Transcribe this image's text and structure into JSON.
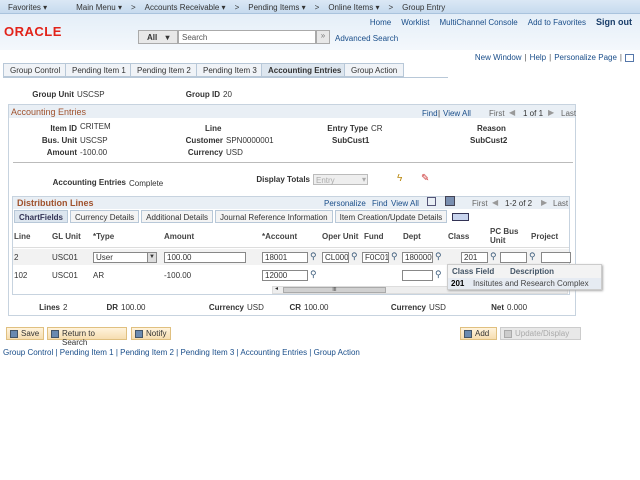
{
  "topnav": {
    "favorites": "Favorites ▾",
    "main_menu": "Main Menu ▾",
    "accounts_receivable": "Accounts Receivable ▾",
    "pending_items": "Pending Items ▾",
    "online_items": "Online Items ▾",
    "group_entry": "Group Entry",
    "sep": ">"
  },
  "header": {
    "logo": "ORACLE",
    "links": [
      "Home",
      "Worklist",
      "MultiChannel Console",
      "Add to Favorites"
    ],
    "sign_out": "Sign out",
    "search_scope": "All",
    "search_placeholder": "Search",
    "advanced_search": "Advanced Search"
  },
  "page_links": {
    "new_window": "New Window",
    "help": "Help",
    "personalize": "Personalize Page"
  },
  "tabs": [
    "Group Control",
    "Pending Item 1",
    "Pending Item 2",
    "Pending Item 3",
    "Accounting Entries",
    "Group Action"
  ],
  "active_tab": 4,
  "group": {
    "unit_label": "Group Unit",
    "unit": "USCSP",
    "id_label": "Group ID",
    "id": "20"
  },
  "accounting": {
    "title": "Accounting Entries",
    "find": "Find",
    "view_all": "View All",
    "first": "First",
    "count": "1 of 1",
    "last": "Last",
    "item_id_label": "Item ID",
    "item_id": "CRITEM",
    "line_label": "Line",
    "entry_type_label": "Entry Type",
    "entry_type": "CR",
    "reason_label": "Reason",
    "bus_unit_label": "Bus. Unit",
    "bus_unit": "USCSP",
    "customer_label": "Customer",
    "customer": "SPN0000001",
    "subcust1_label": "SubCust1",
    "subcust2_label": "SubCust2",
    "amount_label": "Amount",
    "amount": "-100.00",
    "currency_label": "Currency",
    "currency": "USD",
    "status_label": "Accounting Entries",
    "status": "Complete",
    "display_totals_label": "Display Totals",
    "display_totals": "Entry"
  },
  "dist": {
    "title": "Distribution Lines",
    "personalize": "Personalize",
    "find": "Find",
    "view_all": "View All",
    "first": "First",
    "count": "1-2 of 2",
    "last": "Last",
    "subtabs": [
      "ChartFields",
      "Currency Details",
      "Additional Details",
      "Journal Reference Information",
      "Item Creation/Update Details"
    ],
    "columns": [
      "Line",
      "GL Unit",
      "*Type",
      "Amount",
      "*Account",
      "Oper Unit",
      "Fund",
      "Dept",
      "Class",
      "PC Bus Unit",
      "Project"
    ],
    "rows": [
      {
        "line": "2",
        "gl_unit": "USC01",
        "type": "User",
        "amount": "100.00",
        "account": "18001",
        "oper_unit": "CL000",
        "fund": "F0C01",
        "dept": "180000",
        "class": "201",
        "pc_bus_unit": "",
        "project": ""
      },
      {
        "line": "102",
        "gl_unit": "USC01",
        "type": "AR",
        "amount": "-100.00",
        "account": "12000",
        "dept": ""
      }
    ],
    "dropdown": {
      "col1": "Class Field",
      "col2": "Description",
      "value": "201",
      "desc": "Insitutes and Research Complex"
    },
    "scroll_mid": "III"
  },
  "totals": {
    "lines_label": "Lines",
    "lines": "2",
    "dr_label": "DR",
    "dr": "100.00",
    "currency_label": "Currency",
    "currency": "USD",
    "cr_label": "CR",
    "cr": "100.00",
    "currency2": "USD",
    "net_label": "Net",
    "net": "0.000"
  },
  "buttons": {
    "save": "Save",
    "return": "Return to Search",
    "notify": "Notify",
    "add": "Add",
    "update": "Update/Display"
  },
  "footer_links": [
    "Group Control",
    "Pending Item 1",
    "Pending Item 2",
    "Pending Item 3",
    "Accounting Entries",
    "Group Action"
  ]
}
